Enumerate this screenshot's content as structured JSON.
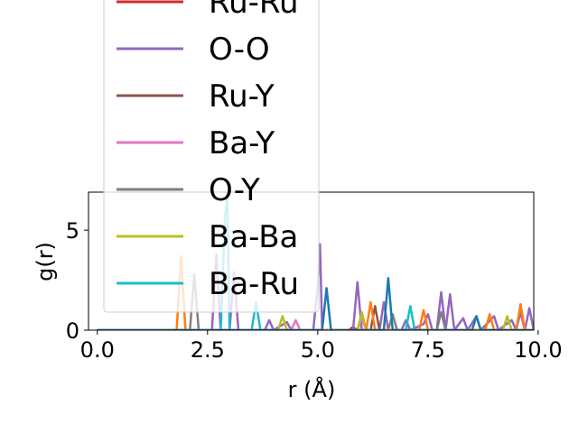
{
  "chart_data": {
    "type": "line",
    "xlabel": "r (Å)",
    "ylabel": "g(r)",
    "xlim": [
      -0.2,
      9.9
    ],
    "ylim": [
      0,
      6.9
    ],
    "xticks": [
      "0.0",
      "2.5",
      "5.0",
      "7.5",
      "10.0"
    ],
    "xtick_values": [
      0,
      2.5,
      5.0,
      7.5,
      10.0
    ],
    "yticks": [
      "0",
      "5"
    ],
    "ytick_values": [
      0,
      5
    ],
    "grid": false,
    "legend_placement": "upper-left, extending above the axes",
    "series": [
      {
        "name": "Ru-Ru",
        "color": "#d62728",
        "points": [
          [
            0,
            0
          ],
          [
            5.7,
            0
          ],
          [
            5.8,
            0.15
          ],
          [
            5.9,
            0
          ],
          [
            9.9,
            0
          ]
        ]
      },
      {
        "name": "O-O",
        "color": "#9467bd",
        "points": [
          [
            0,
            0
          ],
          [
            2.6,
            0
          ],
          [
            2.7,
            3.8
          ],
          [
            2.8,
            0
          ],
          [
            3.0,
            0
          ],
          [
            3.1,
            2.9
          ],
          [
            3.2,
            0
          ],
          [
            3.8,
            0
          ],
          [
            3.9,
            0.5
          ],
          [
            4.0,
            0
          ],
          [
            4.3,
            0.4
          ],
          [
            4.4,
            0
          ],
          [
            4.9,
            0
          ],
          [
            5.0,
            2.2
          ],
          [
            5.05,
            4.3
          ],
          [
            5.1,
            0
          ],
          [
            5.8,
            0
          ],
          [
            5.9,
            2.4
          ],
          [
            6.0,
            0
          ],
          [
            6.4,
            0
          ],
          [
            6.5,
            1.4
          ],
          [
            6.6,
            0
          ],
          [
            6.9,
            0
          ],
          [
            7.0,
            0.5
          ],
          [
            7.1,
            0
          ],
          [
            7.4,
            0.3
          ],
          [
            7.5,
            0.8
          ],
          [
            7.6,
            0
          ],
          [
            7.7,
            0
          ],
          [
            7.8,
            1.9
          ],
          [
            7.9,
            0
          ],
          [
            8.0,
            1.8
          ],
          [
            8.1,
            0
          ],
          [
            8.3,
            0.6
          ],
          [
            8.4,
            0
          ],
          [
            8.6,
            0.7
          ],
          [
            8.7,
            0
          ],
          [
            9.0,
            0.7
          ],
          [
            9.1,
            0
          ],
          [
            9.4,
            0.5
          ],
          [
            9.5,
            0
          ],
          [
            9.6,
            0.9
          ],
          [
            9.7,
            0
          ],
          [
            9.8,
            1.1
          ],
          [
            9.9,
            0
          ]
        ]
      },
      {
        "name": "Ru-Y",
        "color": "#8c564b",
        "points": [
          [
            0,
            0
          ],
          [
            6.2,
            0
          ],
          [
            6.3,
            1.2
          ],
          [
            6.4,
            0
          ],
          [
            9.9,
            0
          ]
        ]
      },
      {
        "name": "Ba-Y",
        "color": "#e377c2",
        "points": [
          [
            0,
            0
          ],
          [
            4.4,
            0
          ],
          [
            4.5,
            0.5
          ],
          [
            4.6,
            0
          ],
          [
            5.9,
            0
          ],
          [
            6.0,
            0.6
          ],
          [
            6.1,
            0
          ],
          [
            9.9,
            0
          ]
        ]
      },
      {
        "name": "O-Y",
        "color": "#7f7f7f",
        "points": [
          [
            0,
            0
          ],
          [
            2.1,
            0
          ],
          [
            2.2,
            2.8
          ],
          [
            2.3,
            0
          ],
          [
            6.6,
            0
          ],
          [
            6.7,
            0.8
          ],
          [
            6.8,
            0
          ],
          [
            7.7,
            0
          ],
          [
            7.8,
            0.9
          ],
          [
            7.9,
            0
          ],
          [
            9.9,
            0
          ]
        ]
      },
      {
        "name": "Ba-Ba",
        "color": "#bcbd22",
        "points": [
          [
            0,
            0
          ],
          [
            4.1,
            0
          ],
          [
            4.2,
            0.7
          ],
          [
            4.3,
            0
          ],
          [
            5.9,
            0
          ],
          [
            6.0,
            0.9
          ],
          [
            6.1,
            0
          ],
          [
            9.2,
            0
          ],
          [
            9.3,
            0.7
          ],
          [
            9.4,
            0
          ],
          [
            9.9,
            0
          ]
        ]
      },
      {
        "name": "Ba-Ru",
        "color": "#17becf",
        "points": [
          [
            0,
            0
          ],
          [
            2.8,
            0
          ],
          [
            2.9,
            5.8
          ],
          [
            2.95,
            6.6
          ],
          [
            3.0,
            0
          ],
          [
            3.5,
            0
          ],
          [
            3.6,
            1.4
          ],
          [
            3.7,
            0
          ],
          [
            7.0,
            0
          ],
          [
            7.1,
            1.2
          ],
          [
            7.2,
            0
          ],
          [
            9.9,
            0
          ]
        ]
      },
      {
        "color": "#ff7f0e",
        "points": [
          [
            0,
            0
          ],
          [
            1.8,
            0
          ],
          [
            1.9,
            3.7
          ],
          [
            2.0,
            0
          ],
          [
            6.1,
            0
          ],
          [
            6.2,
            1.4
          ],
          [
            6.3,
            0
          ],
          [
            7.3,
            0
          ],
          [
            7.4,
            1.0
          ],
          [
            7.5,
            0
          ],
          [
            8.8,
            0
          ],
          [
            8.9,
            0.8
          ],
          [
            9.0,
            0
          ],
          [
            9.5,
            0
          ],
          [
            9.6,
            1.3
          ],
          [
            9.7,
            0
          ],
          [
            9.9,
            0
          ]
        ]
      },
      {
        "color": "#1f77b4",
        "points": [
          [
            0,
            0
          ],
          [
            5.1,
            0
          ],
          [
            5.2,
            2.1
          ],
          [
            5.3,
            0
          ],
          [
            6.5,
            0
          ],
          [
            6.6,
            2.6
          ],
          [
            6.7,
            0
          ],
          [
            8.5,
            0
          ],
          [
            8.6,
            0.7
          ],
          [
            8.7,
            0
          ],
          [
            9.9,
            0
          ]
        ]
      }
    ],
    "legend": [
      "Ru-Ru",
      "O-O",
      "Ru-Y",
      "Ba-Y",
      "O-Y",
      "Ba-Ba",
      "Ba-Ru"
    ]
  }
}
